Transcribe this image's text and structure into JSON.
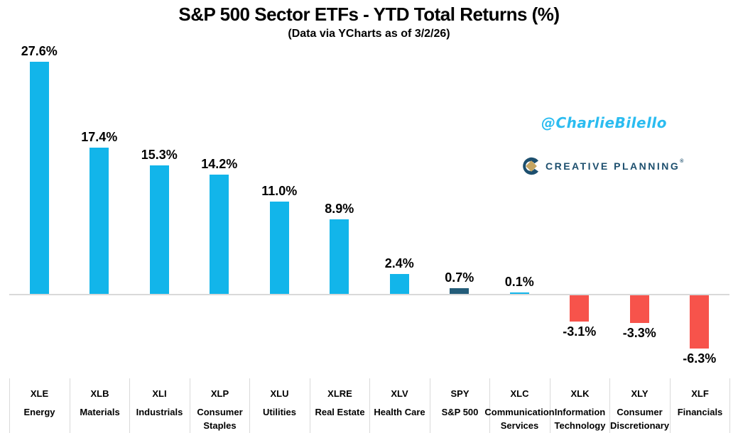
{
  "header": {
    "title": "S&P 500 Sector ETFs - YTD Total Returns (%)",
    "subtitle": "(Data via YCharts as of 3/2/26)"
  },
  "watermarks": {
    "handle": "@CharlieBilello",
    "handle_color": "#2BBCF0",
    "brand_name": "CREATIVE PLANNING",
    "brand_mark": "®",
    "brand_color": "#1D4F6E",
    "brand_accent_color": "#C5A562"
  },
  "chart_data": {
    "type": "bar",
    "title": "S&P 500 Sector ETFs - YTD Total Returns (%)",
    "subtitle": "(Data via YCharts as of 3/2/26)",
    "categories": [
      "XLE",
      "XLB",
      "XLI",
      "XLP",
      "XLU",
      "XLRE",
      "XLV",
      "SPY",
      "XLC",
      "XLK",
      "XLY",
      "XLF"
    ],
    "category_names": [
      "Energy",
      "Materials",
      "Industrials",
      "Consumer Staples",
      "Utilities",
      "Real Estate",
      "Health Care",
      "S&P 500",
      "Communication Services",
      "Information Technology",
      "Consumer Discretionary",
      "Financials"
    ],
    "values": [
      27.6,
      17.4,
      15.3,
      14.2,
      11.0,
      8.9,
      2.4,
      0.7,
      0.1,
      -3.1,
      -3.3,
      -6.3
    ],
    "labels": [
      "27.6%",
      "17.4%",
      "15.3%",
      "14.2%",
      "11.0%",
      "8.9%",
      "2.4%",
      "0.7%",
      "0.1%",
      "-3.1%",
      "-3.3%",
      "-6.3%"
    ],
    "colors": [
      "#12B5EA",
      "#12B5EA",
      "#12B5EA",
      "#12B5EA",
      "#12B5EA",
      "#12B5EA",
      "#12B5EA",
      "#235C79",
      "#12B5EA",
      "#F7534B",
      "#F7534B",
      "#F7534B"
    ],
    "positive_color": "#12B5EA",
    "benchmark_color": "#235C79",
    "negative_color": "#F7534B",
    "axis_line_color": "#D9D9D9",
    "ylim": [
      -8,
      29
    ],
    "grid": false,
    "legend": false,
    "value_label_position": "outside-end",
    "xlabel": "",
    "ylabel": ""
  }
}
